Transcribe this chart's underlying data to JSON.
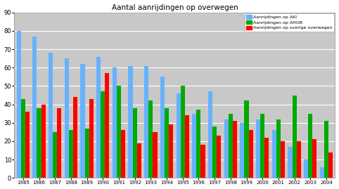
{
  "title": "Aantal aanrijdingen op overwegen",
  "years": [
    1985,
    1986,
    1987,
    1988,
    1989,
    1990,
    1991,
    1992,
    1993,
    1994,
    1995,
    1996,
    1997,
    1998,
    1999,
    2000,
    2001,
    2002,
    2003,
    2004
  ],
  "aki": [
    80,
    77,
    68,
    65,
    62,
    66,
    60,
    61,
    61,
    55,
    46,
    35,
    47,
    32,
    30,
    32,
    26,
    17,
    10,
    6
  ],
  "ahob": [
    43,
    38,
    25,
    26,
    27,
    47,
    50,
    38,
    42,
    38,
    50,
    37,
    28,
    35,
    42,
    35,
    32,
    45,
    35,
    31
  ],
  "overig": [
    36,
    40,
    38,
    44,
    43,
    57,
    26,
    19,
    25,
    29,
    34,
    18,
    23,
    31,
    26,
    22,
    20,
    20,
    21,
    14
  ],
  "color_aki": "#66B2FF",
  "color_ahob": "#00AA00",
  "color_overig": "#FF0000",
  "ylim": [
    0,
    90
  ],
  "yticks": [
    0,
    10,
    20,
    30,
    40,
    50,
    60,
    70,
    80,
    90
  ],
  "legend_aki": "Aanrijdingen op AKI",
  "legend_ahob": "Aanrijdingen op AHOB",
  "legend_overig": "Aanrijdingen op overige overwegen",
  "plot_bg": "#C8C8C8",
  "fig_bg": "#FFFFFF"
}
